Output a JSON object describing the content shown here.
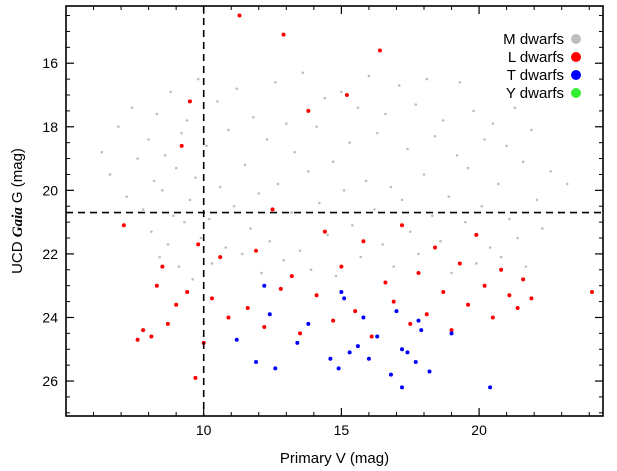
{
  "chart_data": {
    "type": "scatter",
    "title": "",
    "xlabel": "Primary V (mag)",
    "ylabel_prefix": "UCD ",
    "ylabel_italic": "Gaia",
    "ylabel_suffix": " G (mag)",
    "xlim": [
      5.0,
      24.5
    ],
    "ylim": [
      14.2,
      27.1
    ],
    "y_inverted": true,
    "grid": false,
    "legend_position": "top-right",
    "x_ticks": [
      10,
      15,
      20
    ],
    "x_tick_labels": [
      "10",
      "15",
      "20"
    ],
    "y_ticks": [
      16,
      18,
      20,
      22,
      24,
      26
    ],
    "y_tick_labels": [
      "16",
      "18",
      "20",
      "22",
      "24",
      "26"
    ],
    "reference_lines": {
      "vertical_x": 10,
      "horizontal_y": 20.7
    },
    "series": [
      {
        "name": "M dwarfs",
        "color": "#bebebe",
        "points": [
          [
            6.3,
            18.8
          ],
          [
            6.6,
            19.5
          ],
          [
            6.9,
            18.0
          ],
          [
            7.2,
            20.2
          ],
          [
            7.4,
            17.4
          ],
          [
            7.6,
            19.0
          ],
          [
            7.8,
            20.6
          ],
          [
            8.0,
            18.4
          ],
          [
            8.1,
            21.3
          ],
          [
            8.2,
            19.7
          ],
          [
            8.3,
            17.6
          ],
          [
            8.4,
            22.1
          ],
          [
            8.5,
            20.0
          ],
          [
            8.6,
            18.9
          ],
          [
            8.7,
            21.7
          ],
          [
            8.8,
            16.9
          ],
          [
            8.9,
            20.8
          ],
          [
            9.0,
            19.3
          ],
          [
            9.1,
            22.4
          ],
          [
            9.2,
            18.2
          ],
          [
            9.3,
            21.0
          ],
          [
            9.4,
            17.8
          ],
          [
            9.5,
            20.3
          ],
          [
            9.6,
            22.8
          ],
          [
            9.7,
            19.6
          ],
          [
            9.8,
            16.5
          ],
          [
            9.9,
            21.5
          ],
          [
            10.1,
            18.6
          ],
          [
            10.2,
            20.9
          ],
          [
            10.3,
            22.3
          ],
          [
            10.5,
            17.2
          ],
          [
            10.6,
            19.9
          ],
          [
            10.8,
            21.8
          ],
          [
            10.9,
            18.1
          ],
          [
            11.1,
            20.5
          ],
          [
            11.2,
            16.8
          ],
          [
            11.4,
            22.0
          ],
          [
            11.5,
            19.2
          ],
          [
            11.7,
            21.2
          ],
          [
            11.8,
            17.7
          ],
          [
            12.0,
            20.1
          ],
          [
            12.1,
            22.6
          ],
          [
            12.3,
            18.4
          ],
          [
            12.4,
            21.6
          ],
          [
            12.6,
            16.6
          ],
          [
            12.7,
            19.8
          ],
          [
            12.9,
            22.2
          ],
          [
            13.0,
            17.9
          ],
          [
            13.2,
            20.7
          ],
          [
            13.3,
            18.8
          ],
          [
            13.5,
            21.9
          ],
          [
            13.6,
            16.3
          ],
          [
            13.8,
            19.4
          ],
          [
            13.9,
            22.5
          ],
          [
            14.1,
            18.0
          ],
          [
            14.2,
            20.4
          ],
          [
            14.4,
            17.1
          ],
          [
            14.5,
            21.4
          ],
          [
            14.7,
            19.1
          ],
          [
            14.8,
            22.7
          ],
          [
            15.0,
            16.9
          ],
          [
            15.1,
            20.0
          ],
          [
            15.3,
            18.5
          ],
          [
            15.4,
            21.1
          ],
          [
            15.6,
            17.4
          ],
          [
            15.7,
            22.1
          ],
          [
            15.9,
            19.7
          ],
          [
            16.0,
            16.4
          ],
          [
            16.2,
            20.6
          ],
          [
            16.3,
            18.2
          ],
          [
            16.5,
            21.7
          ],
          [
            16.6,
            17.6
          ],
          [
            16.8,
            19.9
          ],
          [
            16.9,
            22.4
          ],
          [
            17.1,
            16.7
          ],
          [
            17.2,
            20.3
          ],
          [
            17.4,
            18.7
          ],
          [
            17.5,
            21.3
          ],
          [
            17.7,
            17.3
          ],
          [
            17.8,
            22.0
          ],
          [
            18.0,
            19.5
          ],
          [
            18.1,
            16.5
          ],
          [
            18.3,
            20.8
          ],
          [
            18.4,
            18.3
          ],
          [
            18.6,
            21.6
          ],
          [
            18.7,
            17.8
          ],
          [
            18.9,
            20.2
          ],
          [
            19.0,
            22.6
          ],
          [
            19.2,
            18.9
          ],
          [
            19.3,
            16.6
          ],
          [
            19.5,
            21.0
          ],
          [
            19.6,
            19.3
          ],
          [
            19.8,
            17.5
          ],
          [
            19.9,
            22.3
          ],
          [
            20.1,
            20.5
          ],
          [
            20.2,
            18.4
          ],
          [
            20.4,
            21.8
          ],
          [
            20.5,
            17.9
          ],
          [
            20.7,
            19.8
          ],
          [
            20.8,
            22.1
          ],
          [
            21.0,
            18.6
          ],
          [
            21.1,
            20.9
          ],
          [
            21.3,
            17.4
          ],
          [
            21.4,
            21.5
          ],
          [
            21.6,
            19.1
          ],
          [
            21.7,
            22.4
          ],
          [
            21.9,
            18.1
          ],
          [
            22.1,
            20.3
          ],
          [
            22.3,
            21.2
          ],
          [
            22.6,
            19.4
          ],
          [
            22.9,
            20.7
          ],
          [
            23.2,
            19.8
          ]
        ]
      },
      {
        "name": "L dwarfs",
        "color": "#ff0000",
        "points": [
          [
            7.1,
            21.1
          ],
          [
            7.6,
            24.7
          ],
          [
            7.8,
            24.4
          ],
          [
            8.1,
            24.6
          ],
          [
            8.3,
            23.0
          ],
          [
            8.5,
            22.4
          ],
          [
            8.7,
            24.2
          ],
          [
            9.0,
            23.6
          ],
          [
            9.2,
            18.6
          ],
          [
            9.4,
            23.2
          ],
          [
            9.5,
            17.2
          ],
          [
            9.7,
            25.9
          ],
          [
            9.8,
            21.7
          ],
          [
            10.0,
            24.8
          ],
          [
            10.3,
            23.4
          ],
          [
            10.6,
            22.1
          ],
          [
            10.9,
            24.0
          ],
          [
            11.3,
            14.5
          ],
          [
            11.6,
            23.7
          ],
          [
            11.9,
            21.9
          ],
          [
            12.2,
            24.3
          ],
          [
            12.5,
            20.6
          ],
          [
            12.8,
            23.1
          ],
          [
            12.9,
            15.1
          ],
          [
            13.2,
            22.7
          ],
          [
            13.5,
            24.5
          ],
          [
            13.8,
            17.5
          ],
          [
            14.1,
            23.3
          ],
          [
            14.4,
            21.3
          ],
          [
            14.7,
            24.1
          ],
          [
            15.0,
            22.4
          ],
          [
            15.2,
            17.0
          ],
          [
            15.5,
            23.8
          ],
          [
            15.8,
            21.6
          ],
          [
            16.1,
            24.6
          ],
          [
            16.4,
            15.6
          ],
          [
            16.6,
            22.9
          ],
          [
            16.9,
            23.5
          ],
          [
            17.2,
            21.1
          ],
          [
            17.5,
            24.2
          ],
          [
            17.8,
            22.6
          ],
          [
            18.1,
            23.9
          ],
          [
            18.4,
            21.8
          ],
          [
            18.7,
            23.2
          ],
          [
            19.0,
            24.4
          ],
          [
            19.3,
            22.3
          ],
          [
            19.6,
            23.6
          ],
          [
            19.9,
            21.4
          ],
          [
            20.2,
            23.0
          ],
          [
            20.5,
            24.0
          ],
          [
            20.8,
            22.5
          ],
          [
            21.1,
            23.3
          ],
          [
            21.4,
            23.7
          ],
          [
            21.6,
            22.8
          ],
          [
            21.9,
            23.4
          ],
          [
            24.1,
            23.2
          ]
        ]
      },
      {
        "name": "T dwarfs",
        "color": "#0000ff",
        "points": [
          [
            11.2,
            24.7
          ],
          [
            11.9,
            25.4
          ],
          [
            12.2,
            23.0
          ],
          [
            12.4,
            23.9
          ],
          [
            12.6,
            25.6
          ],
          [
            13.4,
            24.8
          ],
          [
            13.8,
            24.2
          ],
          [
            14.6,
            25.3
          ],
          [
            14.9,
            25.6
          ],
          [
            15.0,
            23.2
          ],
          [
            15.1,
            23.4
          ],
          [
            15.3,
            25.1
          ],
          [
            15.6,
            24.9
          ],
          [
            15.8,
            24.0
          ],
          [
            16.0,
            25.3
          ],
          [
            16.3,
            24.6
          ],
          [
            16.8,
            25.8
          ],
          [
            17.0,
            23.8
          ],
          [
            17.2,
            25.0
          ],
          [
            17.4,
            25.1
          ],
          [
            17.7,
            25.4
          ],
          [
            17.8,
            24.1
          ],
          [
            17.9,
            24.4
          ],
          [
            18.2,
            25.7
          ],
          [
            19.0,
            24.5
          ],
          [
            20.4,
            26.2
          ],
          [
            17.2,
            26.2
          ]
        ]
      },
      {
        "name": "Y dwarfs",
        "color": "#33ee33",
        "points": []
      }
    ]
  }
}
